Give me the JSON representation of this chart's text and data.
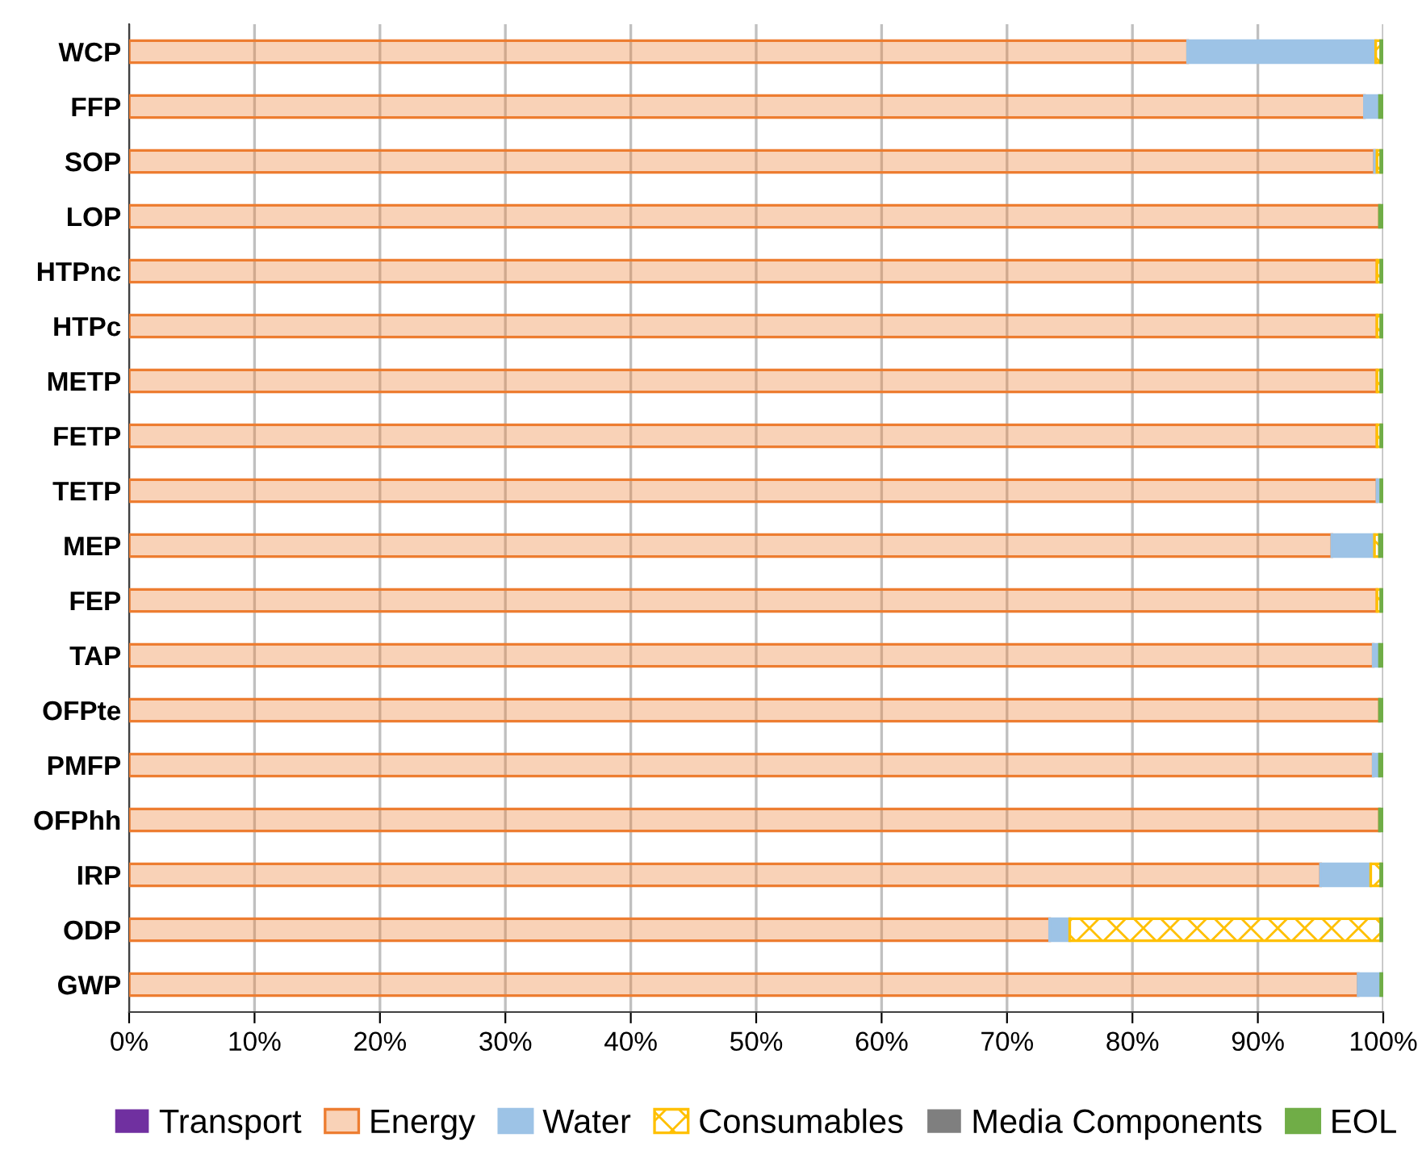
{
  "chart_data": {
    "type": "bar",
    "orientation": "horizontal",
    "stacked": true,
    "categories": [
      "WCP",
      "FFP",
      "SOP",
      "LOP",
      "HTPnc",
      "HTPc",
      "METP",
      "FETP",
      "TETP",
      "MEP",
      "FEP",
      "TAP",
      "OFPte",
      "PMFP",
      "OFPhh",
      "IRP",
      "ODP",
      "GWP"
    ],
    "series": [
      {
        "name": "Transport",
        "color": "#7030a0",
        "values": [
          0,
          0,
          0,
          0,
          0,
          0,
          0,
          0,
          0,
          0,
          0,
          0,
          0,
          0,
          0,
          0,
          0,
          0
        ]
      },
      {
        "name": "Energy",
        "color": "#ed7d31",
        "values": [
          84.4,
          98.5,
          99.3,
          99.7,
          99.5,
          99.5,
          99.5,
          99.5,
          99.5,
          95.9,
          99.5,
          99.2,
          99.7,
          99.2,
          99.7,
          95.0,
          73.4,
          98.0
        ]
      },
      {
        "name": "Water",
        "color": "#9dc3e6",
        "values": [
          15.0,
          1.2,
          0.2,
          0,
          0,
          0,
          0,
          0,
          0.3,
          3.4,
          0,
          0.5,
          0,
          0.5,
          0,
          4.0,
          1.6,
          1.8
        ]
      },
      {
        "name": "Consumables",
        "color": "#ffc000",
        "values": [
          0.4,
          0,
          0.3,
          0,
          0.3,
          0.3,
          0.3,
          0.3,
          0,
          0.4,
          0.3,
          0,
          0,
          0,
          0,
          0.8,
          24.8,
          0
        ]
      },
      {
        "name": "Media Components",
        "color": "#7f7f7f",
        "values": [
          0,
          0,
          0,
          0,
          0,
          0,
          0,
          0,
          0,
          0,
          0,
          0,
          0,
          0,
          0,
          0,
          0,
          0
        ]
      },
      {
        "name": "EOL",
        "color": "#70ad47",
        "values": [
          0.2,
          0.3,
          0.2,
          0.3,
          0.2,
          0.2,
          0.2,
          0.2,
          0.2,
          0.3,
          0.2,
          0.3,
          0.3,
          0.3,
          0.3,
          0.2,
          0.2,
          0.2
        ]
      }
    ],
    "xlim": [
      0,
      100
    ],
    "xticks": [
      {
        "value": 0,
        "label": "0%"
      },
      {
        "value": 10,
        "label": "10%"
      },
      {
        "value": 20,
        "label": "20%"
      },
      {
        "value": 30,
        "label": "30%"
      },
      {
        "value": 40,
        "label": "40%"
      },
      {
        "value": 50,
        "label": "50%"
      },
      {
        "value": 60,
        "label": "60%"
      },
      {
        "value": 70,
        "label": "70%"
      },
      {
        "value": 80,
        "label": "80%"
      },
      {
        "value": 90,
        "label": "90%"
      },
      {
        "value": 100,
        "label": "100%"
      }
    ],
    "grid": "x",
    "legend": "bottom"
  }
}
